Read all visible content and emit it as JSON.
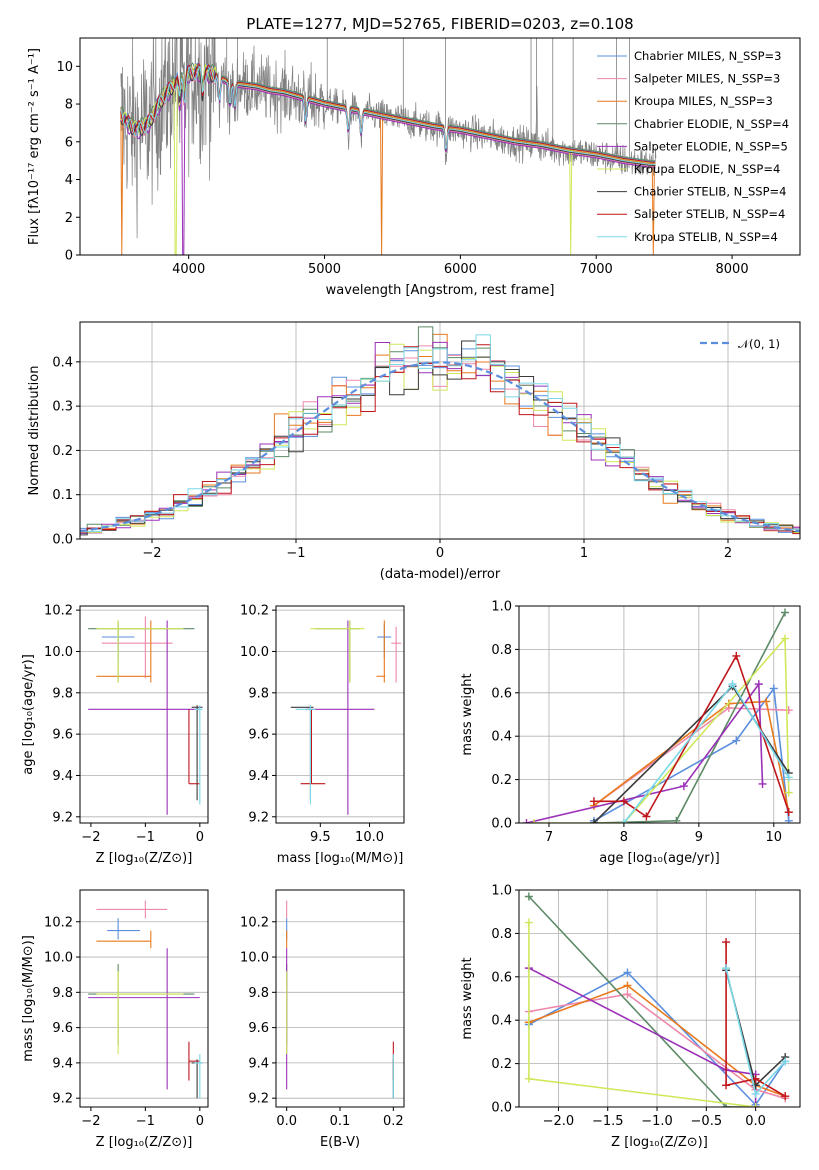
{
  "title": "PLATE=1277, MJD=52765, FIBERID=0203, z=0.108",
  "colors": {
    "chabrier_miles": "#5b8fdd",
    "salpeter_miles": "#ee88aa",
    "kroupa_miles": "#e87a1e",
    "chabrier_elodie": "#5c8a66",
    "salpeter_elodie": "#9b30b8",
    "kroupa_elodie": "#cfe85a",
    "chabrier_stelib": "#3a3a3a",
    "salpeter_stelib": "#c0161c",
    "kroupa_stelib": "#7ad8e8",
    "data": "#808080",
    "normal": "#5b8fdd",
    "grid": "#b0b0b0"
  },
  "chart_data": [
    {
      "id": "spectrum",
      "type": "line",
      "title": "PLATE=1277, MJD=52765, FIBERID=0203, z=0.108",
      "xlabel": "wavelength [Angstrom, rest frame]",
      "ylabel": "Flux [fλ10⁻¹⁷ erg cm⁻² s⁻¹ A⁻¹]",
      "xlim": [
        3200,
        8500
      ],
      "ylim": [
        0,
        11.5
      ],
      "xticks": [
        4000,
        5000,
        6000,
        7000,
        8000
      ],
      "yticks": [
        0,
        2,
        4,
        6,
        8,
        10
      ],
      "legend_position": "top-right",
      "legend": [
        "Chabrier MILES, N_SSP=3",
        "Salpeter MILES, N_SSP=3",
        "Kroupa MILES, N_SSP=3",
        "Chabrier ELODIE, N_SSP=4",
        "Salpeter ELODIE, N_SSP=5",
        "Kroupa ELODIE, N_SSP=4",
        "Chabrier STELIB, N_SSP=4",
        "Salpeter STELIB, N_SSP=4",
        "Kroupa STELIB, N_SSP=4"
      ],
      "continuum": [
        [
          3500,
          7.4
        ],
        [
          3560,
          6.9
        ],
        [
          3620,
          6.6
        ],
        [
          3700,
          6.9
        ],
        [
          3800,
          8.2
        ],
        [
          3900,
          9.1
        ],
        [
          4000,
          9.6
        ],
        [
          4100,
          9.7
        ],
        [
          4200,
          9.5
        ],
        [
          4300,
          9.1
        ],
        [
          4400,
          9.0
        ],
        [
          4500,
          8.9
        ],
        [
          4600,
          8.7
        ],
        [
          4700,
          8.6
        ],
        [
          4800,
          8.4
        ],
        [
          4900,
          8.2
        ],
        [
          5000,
          8.0
        ],
        [
          5200,
          7.7
        ],
        [
          5400,
          7.4
        ],
        [
          5600,
          7.1
        ],
        [
          5800,
          6.8
        ],
        [
          6000,
          6.6
        ],
        [
          6200,
          6.3
        ],
        [
          6400,
          6.0
        ],
        [
          6600,
          5.8
        ],
        [
          6800,
          5.5
        ],
        [
          7000,
          5.3
        ],
        [
          7200,
          5.0
        ],
        [
          7400,
          4.8
        ]
      ],
      "model_drops": [
        [
          3510,
          "kroupa_miles"
        ],
        [
          3905,
          "kroupa_elodie"
        ],
        [
          3960,
          "salpeter_elodie"
        ],
        [
          5420,
          "kroupa_miles"
        ],
        [
          6810,
          "kroupa_elodie"
        ],
        [
          7420,
          "kroupa_miles"
        ]
      ],
      "sky_spikes": [
        4280,
        4360,
        5020,
        5580,
        5890,
        6520,
        6560,
        6680,
        6830,
        7150,
        7245
      ]
    },
    {
      "id": "residuals",
      "type": "histogram",
      "xlabel": "(data-model)/error",
      "ylabel": "Normed distribution",
      "xlim": [
        -2.5,
        2.5
      ],
      "ylim": [
        0,
        0.49
      ],
      "xticks": [
        -2,
        -1,
        0,
        1,
        2
      ],
      "yticks": [
        0.0,
        0.1,
        0.2,
        0.3,
        0.4
      ],
      "legend_position": "top-right",
      "legend": [
        "𝒩(0, 1)"
      ],
      "bin_width": 0.1
    },
    {
      "id": "age_vs_Z",
      "type": "errorbar",
      "xlabel": "Z [log₁₀(Z/Z⊙)]",
      "ylabel": "age  [log₁₀(age/yr)]",
      "xlim": [
        -2.2,
        0.15
      ],
      "ylim": [
        9.17,
        10.22
      ],
      "xticks": [
        -2,
        -1,
        0
      ],
      "yticks": [
        9.2,
        9.4,
        9.6,
        9.8,
        10.0,
        10.2
      ],
      "points": [
        {
          "m": "chabrier_miles",
          "x": -1.5,
          "y": 10.07,
          "x0": -1.8,
          "x1": -1.2,
          "y0": 9.97,
          "y1": 10.13
        },
        {
          "m": "salpeter_miles",
          "x": -1.0,
          "y": 10.04,
          "x0": -1.8,
          "x1": -0.5,
          "y0": 9.87,
          "y1": 10.17
        },
        {
          "m": "kroupa_miles",
          "x": -0.9,
          "y": 9.88,
          "x0": -1.9,
          "x1": -0.9,
          "y0": 9.85,
          "y1": 10.15
        },
        {
          "m": "chabrier_elodie",
          "x": -1.5,
          "y": 10.11,
          "x0": -2.05,
          "x1": -0.1,
          "y0": 9.85,
          "y1": 10.15
        },
        {
          "m": "salpeter_elodie",
          "x": -0.6,
          "y": 9.72,
          "x0": -2.05,
          "x1": 0.0,
          "y0": 9.21,
          "y1": 10.15
        },
        {
          "m": "kroupa_elodie",
          "x": -1.5,
          "y": 10.11,
          "x0": -1.9,
          "x1": -0.3,
          "y0": 9.85,
          "y1": 10.15
        },
        {
          "m": "chabrier_stelib",
          "x": -0.05,
          "y": 9.73,
          "x0": -0.15,
          "x1": 0.05,
          "y0": 9.28,
          "y1": 9.74
        },
        {
          "m": "salpeter_stelib",
          "x": -0.2,
          "y": 9.36,
          "x0": -0.2,
          "x1": 0.0,
          "y0": 9.36,
          "y1": 9.72
        },
        {
          "m": "kroupa_stelib",
          "x": 0.0,
          "y": 9.72,
          "x0": -0.1,
          "x1": 0.05,
          "y0": 9.26,
          "y1": 9.74
        }
      ]
    },
    {
      "id": "age_vs_mass",
      "type": "errorbar",
      "xlabel": "mass [log₁₀(M/M⊙)]",
      "ylabel": "",
      "xlim": [
        9.05,
        10.35
      ],
      "ylim": [
        9.17,
        10.22
      ],
      "xticks": [
        9.5,
        10.0
      ],
      "yticks": [
        9.2,
        9.4,
        9.6,
        9.8,
        10.0,
        10.2
      ],
      "points": [
        {
          "m": "chabrier_miles",
          "x": 10.15,
          "y": 10.07,
          "x0": 10.08,
          "x1": 10.22,
          "y0": 9.97,
          "y1": 10.13
        },
        {
          "m": "salpeter_miles",
          "x": 10.27,
          "y": 10.04,
          "x0": 10.22,
          "x1": 10.32,
          "y0": 9.85,
          "y1": 10.12
        },
        {
          "m": "kroupa_miles",
          "x": 10.15,
          "y": 9.88,
          "x0": 10.07,
          "x1": 10.16,
          "y0": 9.85,
          "y1": 10.15
        },
        {
          "m": "chabrier_elodie",
          "x": 9.8,
          "y": 10.11,
          "x0": 9.45,
          "x1": 9.9,
          "y0": 9.85,
          "y1": 10.15
        },
        {
          "m": "salpeter_elodie",
          "x": 9.78,
          "y": 9.72,
          "x0": 9.35,
          "x1": 10.05,
          "y0": 9.21,
          "y1": 10.15
        },
        {
          "m": "kroupa_elodie",
          "x": 9.8,
          "y": 10.11,
          "x0": 9.4,
          "x1": 9.95,
          "y0": 9.85,
          "y1": 10.15
        },
        {
          "m": "chabrier_stelib",
          "x": 9.4,
          "y": 9.73,
          "x0": 9.2,
          "x1": 9.43,
          "y0": 9.28,
          "y1": 9.74
        },
        {
          "m": "salpeter_stelib",
          "x": 9.41,
          "y": 9.36,
          "x0": 9.3,
          "x1": 9.55,
          "y0": 9.36,
          "y1": 9.72
        },
        {
          "m": "kroupa_stelib",
          "x": 9.4,
          "y": 9.72,
          "x0": 9.25,
          "x1": 9.45,
          "y0": 9.26,
          "y1": 9.74
        }
      ]
    },
    {
      "id": "weight_vs_age",
      "type": "line",
      "xlabel": "age  [log₁₀(age/yr)]",
      "ylabel": "mass weight",
      "xlim": [
        6.6,
        10.35
      ],
      "ylim": [
        0,
        1
      ],
      "xticks": [
        7,
        8,
        9,
        10
      ],
      "yticks": [
        0.0,
        0.2,
        0.4,
        0.6,
        0.8,
        1.0
      ],
      "series": [
        {
          "m": "chabrier_miles",
          "points": [
            [
              7.6,
              0.01
            ],
            [
              9.5,
              0.38
            ],
            [
              10.0,
              0.62
            ],
            [
              10.2,
              0.01
            ]
          ]
        },
        {
          "m": "salpeter_miles",
          "points": [
            [
              7.6,
              0.08
            ],
            [
              9.4,
              0.53
            ],
            [
              10.2,
              0.52
            ]
          ]
        },
        {
          "m": "kroupa_miles",
          "points": [
            [
              7.6,
              0.08
            ],
            [
              9.4,
              0.55
            ],
            [
              9.9,
              0.56
            ],
            [
              10.2,
              0.05
            ]
          ]
        },
        {
          "m": "chabrier_elodie",
          "points": [
            [
              7.6,
              0.0
            ],
            [
              8.7,
              0.01
            ],
            [
              10.15,
              0.97
            ]
          ]
        },
        {
          "m": "salpeter_elodie",
          "points": [
            [
              6.7,
              0.0
            ],
            [
              8.8,
              0.17
            ],
            [
              9.8,
              0.64
            ],
            [
              9.85,
              0.18
            ]
          ]
        },
        {
          "m": "kroupa_elodie",
          "points": [
            [
              6.8,
              0.0
            ],
            [
              8.0,
              0.0
            ],
            [
              10.15,
              0.85
            ],
            [
              10.2,
              0.14
            ]
          ]
        },
        {
          "m": "chabrier_stelib",
          "points": [
            [
              7.6,
              0.0
            ],
            [
              9.45,
              0.63
            ],
            [
              10.2,
              0.23
            ]
          ]
        },
        {
          "m": "salpeter_stelib",
          "points": [
            [
              7.6,
              0.1
            ],
            [
              8.0,
              0.1
            ],
            [
              8.3,
              0.03
            ],
            [
              9.5,
              0.77
            ],
            [
              10.2,
              0.05
            ]
          ]
        },
        {
          "m": "kroupa_stelib",
          "points": [
            [
              8.0,
              0.0
            ],
            [
              9.45,
              0.64
            ],
            [
              10.2,
              0.21
            ]
          ]
        }
      ]
    },
    {
      "id": "mass_vs_Z",
      "type": "errorbar",
      "xlabel": "Z [log₁₀(Z/Z⊙)]",
      "ylabel": "mass [log₁₀(M/M⊙)]",
      "xlim": [
        -2.2,
        0.15
      ],
      "ylim": [
        9.15,
        10.38
      ],
      "xticks": [
        -2,
        -1,
        0
      ],
      "yticks": [
        9.2,
        9.4,
        9.6,
        9.8,
        10.0,
        10.2
      ],
      "points": [
        {
          "m": "chabrier_miles",
          "x": -1.5,
          "y": 10.15,
          "x0": -1.7,
          "x1": -1.1,
          "y0": 10.1,
          "y1": 10.22
        },
        {
          "m": "salpeter_miles",
          "x": -1.0,
          "y": 10.27,
          "x0": -1.9,
          "x1": -0.6,
          "y0": 10.22,
          "y1": 10.32
        },
        {
          "m": "kroupa_miles",
          "x": -0.9,
          "y": 10.09,
          "x0": -1.9,
          "x1": -0.9,
          "y0": 10.05,
          "y1": 10.15
        },
        {
          "m": "chabrier_elodie",
          "x": -1.5,
          "y": 9.79,
          "x0": -2.05,
          "x1": -0.1,
          "y0": 9.5,
          "y1": 9.96
        },
        {
          "m": "salpeter_elodie",
          "x": -0.6,
          "y": 9.77,
          "x0": -2.05,
          "x1": 0.0,
          "y0": 9.25,
          "y1": 10.05
        },
        {
          "m": "kroupa_elodie",
          "x": -1.5,
          "y": 9.79,
          "x0": -1.9,
          "x1": -0.3,
          "y0": 9.45,
          "y1": 9.92
        },
        {
          "m": "chabrier_stelib",
          "x": -0.05,
          "y": 9.4,
          "x0": -0.15,
          "x1": 0.05,
          "y0": 9.2,
          "y1": 9.42
        },
        {
          "m": "salpeter_stelib",
          "x": -0.2,
          "y": 9.41,
          "x0": -0.2,
          "x1": 0.0,
          "y0": 9.3,
          "y1": 9.52
        },
        {
          "m": "kroupa_stelib",
          "x": 0.0,
          "y": 9.4,
          "x0": -0.1,
          "x1": 0.05,
          "y0": 9.2,
          "y1": 9.45
        }
      ]
    },
    {
      "id": "mass_vs_ebv",
      "type": "errorbar",
      "xlabel": "E(B-V)",
      "ylabel": "",
      "xlim": [
        -0.02,
        0.22
      ],
      "ylim": [
        9.15,
        10.38
      ],
      "xticks": [
        0.0,
        0.1,
        0.2
      ],
      "yticks": [
        9.2,
        9.4,
        9.6,
        9.8,
        10.0,
        10.2
      ],
      "points": [
        {
          "m": "chabrier_miles",
          "x": 0.0,
          "y": 10.15,
          "x0": 0.0,
          "x1": 0.0,
          "y0": 10.1,
          "y1": 10.22
        },
        {
          "m": "salpeter_miles",
          "x": 0.0,
          "y": 10.27,
          "x0": 0.0,
          "x1": 0.0,
          "y0": 10.22,
          "y1": 10.32
        },
        {
          "m": "kroupa_miles",
          "x": 0.0,
          "y": 10.09,
          "x0": 0.0,
          "x1": 0.0,
          "y0": 10.05,
          "y1": 10.15
        },
        {
          "m": "chabrier_elodie",
          "x": 0.0,
          "y": 9.79,
          "x0": 0.0,
          "x1": 0.0,
          "y0": 9.5,
          "y1": 9.96
        },
        {
          "m": "salpeter_elodie",
          "x": 0.0,
          "y": 9.77,
          "x0": 0.0,
          "x1": 0.0,
          "y0": 9.25,
          "y1": 10.05
        },
        {
          "m": "kroupa_elodie",
          "x": 0.0,
          "y": 9.79,
          "x0": 0.0,
          "x1": 0.0,
          "y0": 9.45,
          "y1": 9.92
        },
        {
          "m": "chabrier_stelib",
          "x": 0.2,
          "y": 9.4,
          "x0": 0.2,
          "x1": 0.2,
          "y0": 9.2,
          "y1": 9.42
        },
        {
          "m": "salpeter_stelib",
          "x": 0.2,
          "y": 9.41,
          "x0": 0.2,
          "x1": 0.2,
          "y0": 9.3,
          "y1": 9.52
        },
        {
          "m": "kroupa_stelib",
          "x": 0.2,
          "y": 9.4,
          "x0": 0.2,
          "x1": 0.2,
          "y0": 9.2,
          "y1": 9.45
        }
      ]
    },
    {
      "id": "weight_vs_Z",
      "type": "line",
      "xlabel": "Z [log₁₀(Z/Z⊙)]",
      "ylabel": "mass weight",
      "xlim": [
        -2.4,
        0.45
      ],
      "ylim": [
        0,
        1
      ],
      "xticks": [
        -2.0,
        -1.5,
        -1.0,
        -0.5,
        0.0
      ],
      "yticks": [
        0.0,
        0.2,
        0.4,
        0.6,
        0.8,
        1.0
      ],
      "series": [
        {
          "m": "chabrier_miles",
          "points": [
            [
              -2.3,
              0.38
            ],
            [
              -1.3,
              0.62
            ],
            [
              0.0,
              0.01
            ],
            [
              0.3,
              0.21
            ]
          ]
        },
        {
          "m": "salpeter_miles",
          "points": [
            [
              -2.3,
              0.44
            ],
            [
              -1.3,
              0.52
            ],
            [
              0.0,
              0.08
            ],
            [
              0.3,
              0.04
            ]
          ]
        },
        {
          "m": "kroupa_miles",
          "points": [
            [
              -2.3,
              0.39
            ],
            [
              -1.3,
              0.56
            ],
            [
              0.0,
              0.1
            ],
            [
              0.3,
              0.05
            ]
          ]
        },
        {
          "m": "chabrier_elodie",
          "points": [
            [
              -2.3,
              0.97
            ],
            [
              -0.3,
              0.0
            ],
            [
              0.0,
              0.0
            ]
          ]
        },
        {
          "m": "salpeter_elodie",
          "points": [
            [
              -2.3,
              0.64
            ],
            [
              -0.3,
              0.17
            ],
            [
              0.0,
              0.15
            ],
            [
              0.0,
              0.0
            ]
          ]
        },
        {
          "m": "kroupa_elodie",
          "points": [
            [
              -2.3,
              0.85
            ],
            [
              -2.3,
              0.13
            ],
            [
              0.0,
              0.0
            ]
          ]
        },
        {
          "m": "chabrier_stelib",
          "points": [
            [
              -0.3,
              0.63
            ],
            [
              0.0,
              0.1
            ],
            [
              0.3,
              0.23
            ]
          ]
        },
        {
          "m": "salpeter_stelib",
          "points": [
            [
              -0.3,
              0.76
            ],
            [
              -0.3,
              0.1
            ],
            [
              0.0,
              0.13
            ],
            [
              0.3,
              0.05
            ]
          ]
        },
        {
          "m": "kroupa_stelib",
          "points": [
            [
              -0.3,
              0.64
            ],
            [
              0.0,
              0.06
            ],
            [
              0.3,
              0.21
            ]
          ]
        }
      ]
    }
  ]
}
